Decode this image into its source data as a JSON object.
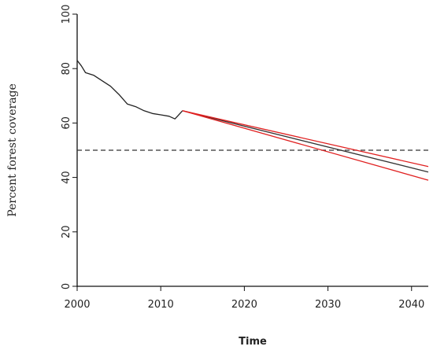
{
  "chart_data": {
    "type": "line",
    "xlabel": "Time",
    "ylabel": "Percent forest coverage",
    "xlim": [
      2000,
      2042
    ],
    "ylim": [
      0,
      100
    ],
    "x_ticks": [
      2000,
      2010,
      2020,
      2030,
      2040
    ],
    "y_ticks": [
      0,
      20,
      40,
      60,
      80,
      100
    ],
    "reference_line": {
      "y": 50,
      "style": "dashed",
      "color": "#333333"
    },
    "series": [
      {
        "role": "observed",
        "color": "#222222",
        "points": [
          [
            2000,
            83
          ],
          [
            2000.5,
            81
          ],
          [
            2001,
            78.5
          ],
          [
            2002,
            77.5
          ],
          [
            2003,
            75.5
          ],
          [
            2004,
            73.5
          ],
          [
            2005,
            70.5
          ],
          [
            2006,
            67
          ],
          [
            2007,
            66
          ],
          [
            2008,
            64.5
          ],
          [
            2009,
            63.5
          ],
          [
            2010,
            63
          ],
          [
            2011,
            62.5
          ],
          [
            2011.7,
            61.5
          ],
          [
            2012,
            62.5
          ],
          [
            2012.6,
            64.5
          ]
        ]
      },
      {
        "role": "forecast-mean",
        "color": "#333333",
        "points": [
          [
            2012.6,
            64.5
          ],
          [
            2042,
            42
          ]
        ]
      },
      {
        "role": "forecast-upper",
        "color": "#e02020",
        "points": [
          [
            2012.6,
            64.5
          ],
          [
            2042,
            44
          ]
        ]
      },
      {
        "role": "forecast-lower",
        "color": "#e02020",
        "points": [
          [
            2012.6,
            64.5
          ],
          [
            2042,
            39
          ]
        ]
      }
    ]
  }
}
